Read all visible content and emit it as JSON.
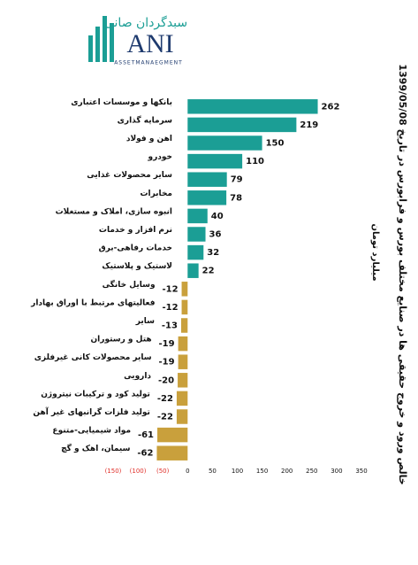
{
  "logo": {
    "name": "سبدگردان صانی",
    "mark": "ANI",
    "tagline": "ASSETMANAEGMENT"
  },
  "chart_data": {
    "type": "barh",
    "title": "خالص ورود و خروج حقیقی ها در صنایع مختلف بورس و فرابورس در تاریخ 1399/05/08",
    "subtitle": "میلیارد تومان",
    "categories": [
      "بانکها و موسسات اعتباری",
      "سرمایه گذاری",
      "اهن و فولاد",
      "خودرو",
      "سایر محصولات غذایی",
      "مخابرات",
      "انبوه سازی، املاک و مستغلات",
      "نرم افزار و خدمات",
      "خدمات رفاهی-برق",
      "لاستیک و پلاستیک",
      "وسایل خانگی",
      "فعالیتهای مرتبط با اوراق بهادار",
      "سایر",
      "هتل و رستوران",
      "سایر محصولات کانی غیرفلزی",
      "دارویی",
      "تولید کود و ترکیبات نیتروژن",
      "تولید فلزات گرانبهای غیر آهن",
      "مواد شیمیایی-متنوع",
      "سیمان، اهک و گچ"
    ],
    "values": [
      262,
      219,
      150,
      110,
      79,
      78,
      40,
      36,
      32,
      22,
      -12,
      -12,
      -13,
      -19,
      -19,
      -20,
      -22,
      -22,
      -61,
      -62
    ],
    "positive_color": "#1b9e95",
    "negative_color": "#c9a03c",
    "negative_tick_color": "#e0302a",
    "xlim": [
      -150,
      350
    ],
    "xticks": [
      {
        "value": -150,
        "label": "(150)"
      },
      {
        "value": -100,
        "label": "(100)"
      },
      {
        "value": -50,
        "label": "(50)"
      },
      0,
      50,
      100,
      150,
      200,
      250,
      300,
      350
    ]
  }
}
